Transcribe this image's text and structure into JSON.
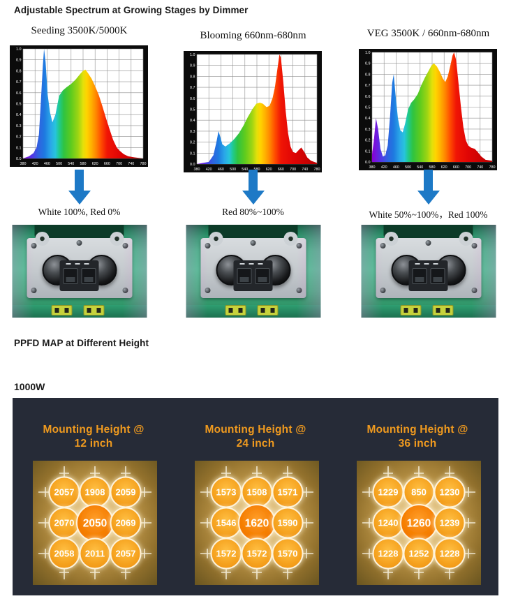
{
  "page": {
    "section1_title": "Adjustable Spectrum at Growing Stages by Dimmer",
    "section2_title": "PPFD MAP at Different Height",
    "wattage_label": "1000W"
  },
  "colors": {
    "arrow_blue": "#1d79c6",
    "panel_bg": "#262b37",
    "ppfd_title_orange": "#ef9a1f",
    "circle_orange": "#f5a11e",
    "circle_center_orange": "#f57d00",
    "map_gold_center": "#e0b76d",
    "map_gold_edge": "#63511e",
    "chart_frame_black": "#0b0b0b",
    "spectrum_stops": [
      [
        "0%",
        "#8a00d4"
      ],
      [
        "7%",
        "#5533e6"
      ],
      [
        "13%",
        "#2f62e0"
      ],
      [
        "18%",
        "#1e7ae0"
      ],
      [
        "23%",
        "#2aa7e8"
      ],
      [
        "27%",
        "#27c4dc"
      ],
      [
        "30%",
        "#20ca8f"
      ],
      [
        "34%",
        "#2fc341"
      ],
      [
        "40%",
        "#5ecb1e"
      ],
      [
        "46%",
        "#9ed513"
      ],
      [
        "50%",
        "#e3e00a"
      ],
      [
        "53%",
        "#ffd400"
      ],
      [
        "57%",
        "#ffb000"
      ],
      [
        "61%",
        "#ff8400"
      ],
      [
        "65%",
        "#ff4d00"
      ],
      [
        "70%",
        "#f01505"
      ],
      [
        "80%",
        "#e00505"
      ],
      [
        "100%",
        "#b80000"
      ]
    ]
  },
  "spectrum_section": {
    "columns": [
      {
        "title": "Seeding 3500K/5000K",
        "dimmer_label": "White 100%, Red 0%"
      },
      {
        "title": "Blooming 660nm-680nm",
        "dimmer_label": "Red 80%~100%"
      },
      {
        "title": "VEG 3500K / 660nm-680nm",
        "dimmer_label": "White 50%~100%，Red 100%"
      }
    ]
  },
  "chart_data": [
    {
      "type": "area",
      "title": "Seeding 3500K/5000K",
      "xlabel": "",
      "ylabel": "",
      "xlim": [
        380,
        780
      ],
      "ylim": [
        0,
        1
      ],
      "grid": true,
      "x_ticks": [
        "380",
        "420",
        "460",
        "500",
        "540",
        "580",
        "620",
        "660",
        "700",
        "740",
        "780"
      ],
      "y_ticks": [
        "1.0",
        "0.9",
        "0.8",
        "0.7",
        "0.6",
        "0.5",
        "0.4",
        "0.3",
        "0.2",
        "0.1",
        "0.0"
      ],
      "points": [
        [
          380,
          0.0
        ],
        [
          400,
          0.02
        ],
        [
          415,
          0.05
        ],
        [
          425,
          0.1
        ],
        [
          433,
          0.22
        ],
        [
          440,
          0.55
        ],
        [
          446,
          0.85
        ],
        [
          450,
          1.0
        ],
        [
          455,
          0.88
        ],
        [
          462,
          0.58
        ],
        [
          470,
          0.42
        ],
        [
          478,
          0.33
        ],
        [
          488,
          0.4
        ],
        [
          500,
          0.57
        ],
        [
          512,
          0.62
        ],
        [
          525,
          0.65
        ],
        [
          540,
          0.68
        ],
        [
          555,
          0.72
        ],
        [
          570,
          0.77
        ],
        [
          580,
          0.8
        ],
        [
          588,
          0.81
        ],
        [
          596,
          0.78
        ],
        [
          608,
          0.73
        ],
        [
          620,
          0.66
        ],
        [
          632,
          0.58
        ],
        [
          644,
          0.48
        ],
        [
          656,
          0.37
        ],
        [
          668,
          0.27
        ],
        [
          680,
          0.17
        ],
        [
          692,
          0.1
        ],
        [
          702,
          0.07
        ],
        [
          715,
          0.04
        ],
        [
          730,
          0.02
        ],
        [
          750,
          0.01
        ],
        [
          780,
          0.0
        ]
      ]
    },
    {
      "type": "area",
      "title": "Blooming 660nm-680nm",
      "xlabel": "",
      "ylabel": "",
      "xlim": [
        380,
        780
      ],
      "ylim": [
        0,
        1
      ],
      "grid": true,
      "x_ticks": [
        "380",
        "420",
        "460",
        "500",
        "540",
        "580",
        "620",
        "660",
        "700",
        "740",
        "780"
      ],
      "y_ticks": [
        "1.0",
        "0.9",
        "0.8",
        "0.7",
        "0.6",
        "0.5",
        "0.4",
        "0.3",
        "0.2",
        "0.1",
        "0.0"
      ],
      "points": [
        [
          380,
          0.0
        ],
        [
          420,
          0.02
        ],
        [
          435,
          0.08
        ],
        [
          445,
          0.2
        ],
        [
          452,
          0.3
        ],
        [
          458,
          0.25
        ],
        [
          465,
          0.18
        ],
        [
          475,
          0.16
        ],
        [
          490,
          0.19
        ],
        [
          505,
          0.23
        ],
        [
          520,
          0.28
        ],
        [
          535,
          0.35
        ],
        [
          550,
          0.43
        ],
        [
          565,
          0.5
        ],
        [
          578,
          0.55
        ],
        [
          590,
          0.56
        ],
        [
          600,
          0.55
        ],
        [
          612,
          0.52
        ],
        [
          622,
          0.53
        ],
        [
          632,
          0.6
        ],
        [
          640,
          0.7
        ],
        [
          648,
          0.86
        ],
        [
          655,
          1.0
        ],
        [
          660,
          0.97
        ],
        [
          668,
          0.75
        ],
        [
          676,
          0.48
        ],
        [
          684,
          0.28
        ],
        [
          692,
          0.16
        ],
        [
          700,
          0.11
        ],
        [
          710,
          0.1
        ],
        [
          720,
          0.13
        ],
        [
          728,
          0.15
        ],
        [
          738,
          0.11
        ],
        [
          748,
          0.06
        ],
        [
          760,
          0.03
        ],
        [
          780,
          0.01
        ]
      ]
    },
    {
      "type": "area",
      "title": "VEG 3500K / 660nm-680nm",
      "xlabel": "",
      "ylabel": "",
      "xlim": [
        380,
        780
      ],
      "ylim": [
        0,
        1
      ],
      "grid": true,
      "x_ticks": [
        "380",
        "420",
        "460",
        "500",
        "540",
        "580",
        "620",
        "660",
        "700",
        "740",
        "780"
      ],
      "y_ticks": [
        "1.0",
        "0.9",
        "0.8",
        "0.7",
        "0.6",
        "0.5",
        "0.4",
        "0.3",
        "0.2",
        "0.1",
        "0.0"
      ],
      "points": [
        [
          380,
          0.07
        ],
        [
          386,
          0.2
        ],
        [
          393,
          0.4
        ],
        [
          400,
          0.3
        ],
        [
          408,
          0.12
        ],
        [
          416,
          0.05
        ],
        [
          424,
          0.06
        ],
        [
          432,
          0.15
        ],
        [
          440,
          0.42
        ],
        [
          447,
          0.72
        ],
        [
          452,
          0.8
        ],
        [
          458,
          0.62
        ],
        [
          466,
          0.4
        ],
        [
          474,
          0.29
        ],
        [
          482,
          0.27
        ],
        [
          490,
          0.35
        ],
        [
          500,
          0.48
        ],
        [
          510,
          0.54
        ],
        [
          520,
          0.57
        ],
        [
          532,
          0.62
        ],
        [
          544,
          0.7
        ],
        [
          556,
          0.77
        ],
        [
          568,
          0.83
        ],
        [
          578,
          0.88
        ],
        [
          586,
          0.9
        ],
        [
          596,
          0.87
        ],
        [
          606,
          0.82
        ],
        [
          616,
          0.76
        ],
        [
          624,
          0.73
        ],
        [
          632,
          0.78
        ],
        [
          640,
          0.87
        ],
        [
          648,
          0.97
        ],
        [
          653,
          1.0
        ],
        [
          660,
          0.93
        ],
        [
          668,
          0.72
        ],
        [
          676,
          0.5
        ],
        [
          684,
          0.32
        ],
        [
          692,
          0.2
        ],
        [
          700,
          0.15
        ],
        [
          710,
          0.13
        ],
        [
          722,
          0.12
        ],
        [
          732,
          0.09
        ],
        [
          744,
          0.05
        ],
        [
          758,
          0.02
        ],
        [
          780,
          0.01
        ]
      ]
    }
  ],
  "ppfd": {
    "maps": [
      {
        "title_line1": "Mounting Height @",
        "title_line2": "12 inch",
        "values": [
          2057,
          1908,
          2059,
          2070,
          2050,
          2069,
          2058,
          2011,
          2057
        ]
      },
      {
        "title_line1": "Mounting Height @",
        "title_line2": "24 inch",
        "values": [
          1573,
          1508,
          1571,
          1546,
          1620,
          1590,
          1572,
          1572,
          1570
        ]
      },
      {
        "title_line1": "Mounting Height @",
        "title_line2": "36 inch",
        "values": [
          1229,
          850,
          1230,
          1240,
          1260,
          1239,
          1228,
          1252,
          1228
        ]
      }
    ]
  }
}
